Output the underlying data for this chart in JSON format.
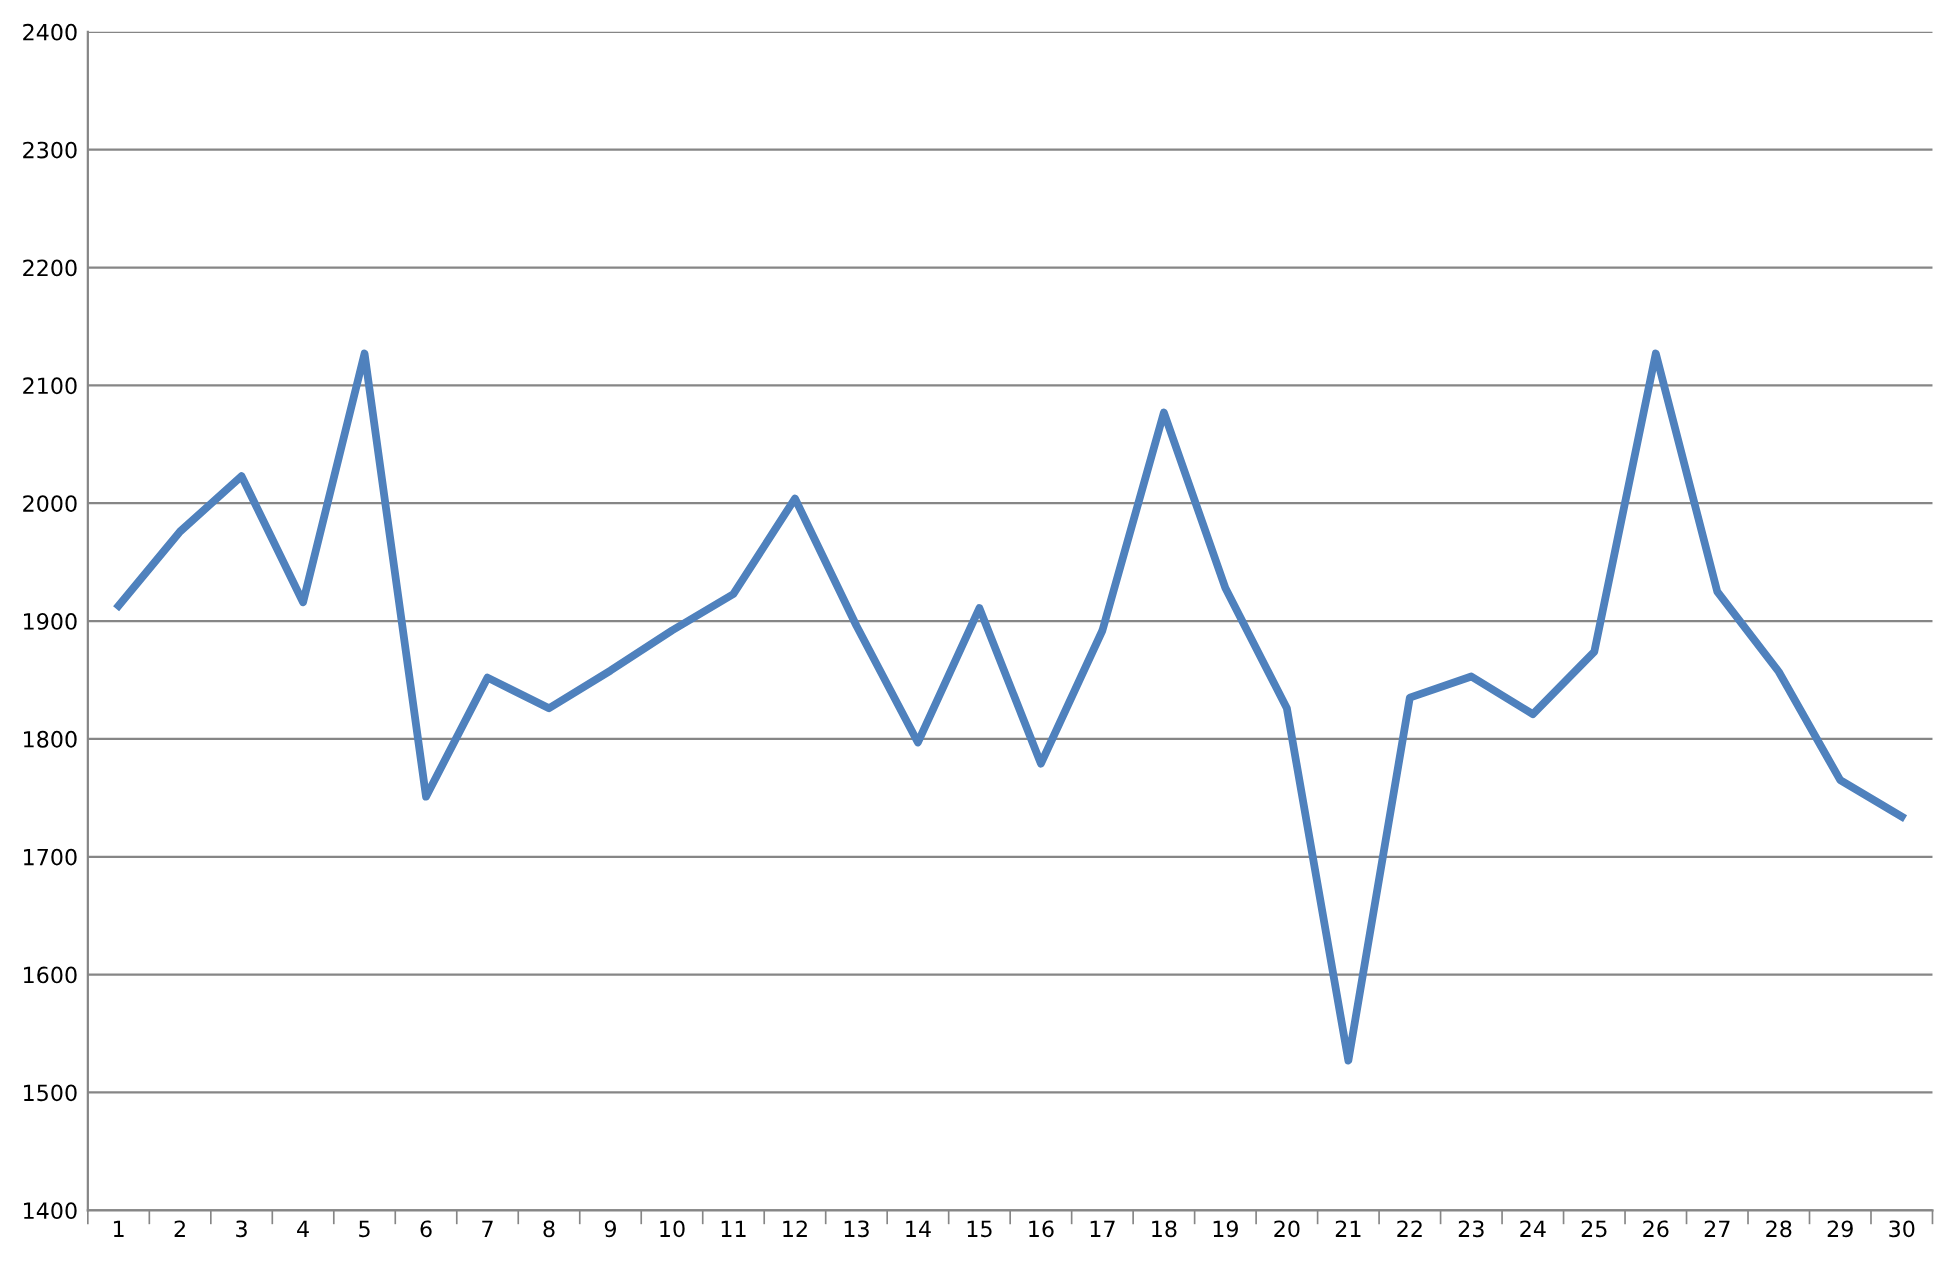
{
  "chart_data": {
    "type": "line",
    "categories": [
      "1",
      "2",
      "3",
      "4",
      "5",
      "6",
      "7",
      "8",
      "9",
      "10",
      "11",
      "12",
      "13",
      "14",
      "15",
      "16",
      "17",
      "18",
      "19",
      "20",
      "21",
      "22",
      "23",
      "24",
      "25",
      "26",
      "27",
      "28",
      "29",
      "30"
    ],
    "series": [
      {
        "color": "#4f81bd",
        "values": [
          1913,
          1976,
          2023,
          1916,
          2127,
          1751,
          1852,
          1826,
          1858,
          1892,
          1923,
          2004,
          1896,
          1797,
          1911,
          1779,
          1892,
          2077,
          1928,
          1826,
          1527,
          1835,
          1853,
          1821,
          1874,
          2127,
          1925,
          1857,
          1765,
          1734
        ]
      }
    ],
    "ylim": [
      1400,
      2400
    ],
    "yticks": [
      1400,
      1500,
      1600,
      1700,
      1800,
      1900,
      2000,
      2100,
      2200,
      2300,
      2400
    ],
    "grid": "y",
    "marker": "none",
    "line_style": "solid"
  }
}
